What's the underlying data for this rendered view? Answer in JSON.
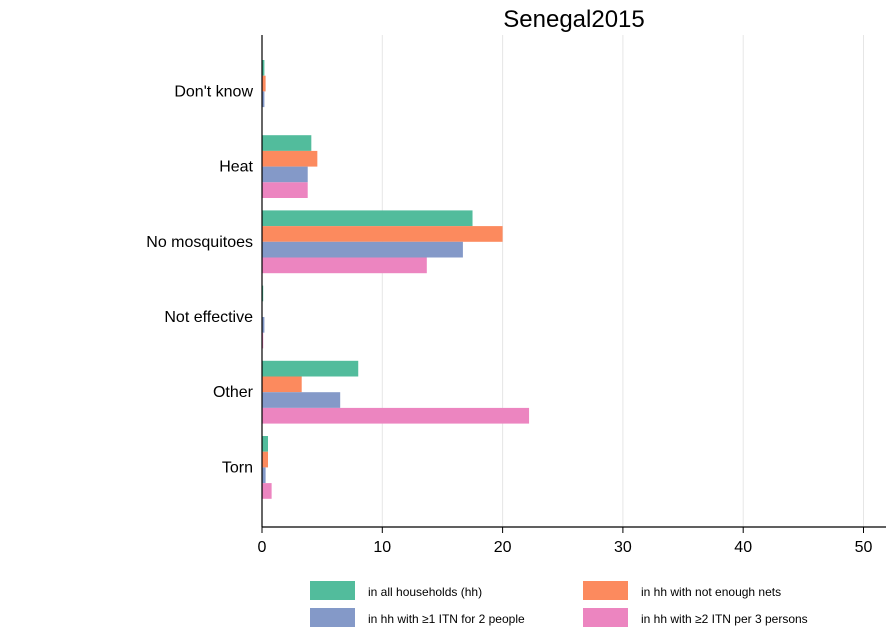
{
  "chart_data": {
    "type": "bar",
    "orientation": "horizontal",
    "title": "Senegal2015",
    "xlabel": "",
    "ylabel": "",
    "xlim": [
      0,
      52
    ],
    "xticks": [
      0,
      10,
      20,
      30,
      40,
      50
    ],
    "grid": true,
    "legend_position": "bottom",
    "categories": [
      "Don't know",
      "Heat",
      "No mosquitoes",
      "Not effective",
      "Other",
      "Torn"
    ],
    "series": [
      {
        "name": "in all households (hh)",
        "color": "#52bc9c",
        "values": [
          0.2,
          4.1,
          17.5,
          0.1,
          8.0,
          0.5
        ]
      },
      {
        "name": "in hh with not enough nets",
        "color": "#fc8a5e",
        "values": [
          0.3,
          4.6,
          20.0,
          0.0,
          3.3,
          0.5
        ]
      },
      {
        "name": "in hh with ≥1 ITN for 2 people",
        "color": "#8499c8",
        "values": [
          0.2,
          3.8,
          16.7,
          0.2,
          6.5,
          0.3
        ]
      },
      {
        "name": "in hh with ≥2 ITN per 3 persons",
        "color": "#ec85c0",
        "values": [
          0.0,
          3.8,
          13.7,
          0.1,
          22.2,
          0.8
        ]
      }
    ]
  }
}
